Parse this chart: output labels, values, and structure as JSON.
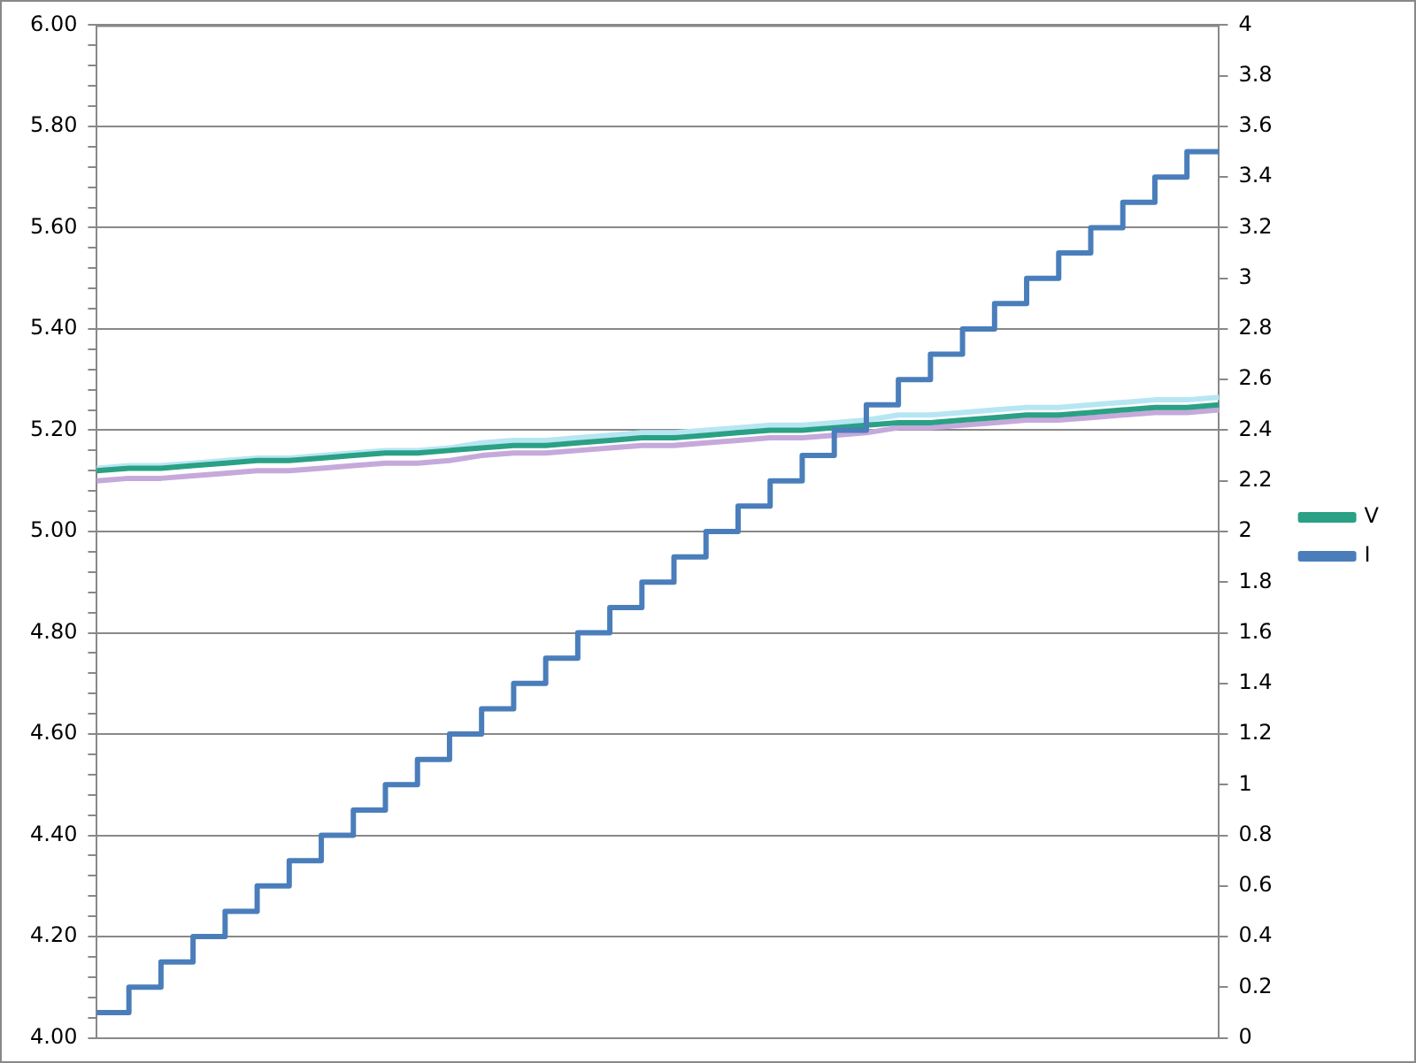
{
  "chart_data": {
    "type": "line",
    "categories": [
      null,
      null,
      null,
      null,
      null,
      null,
      null,
      null,
      null,
      null,
      null,
      null,
      null,
      null,
      null,
      null,
      null,
      null,
      null,
      null,
      null,
      null,
      null,
      null,
      null,
      null,
      null,
      null,
      null,
      null,
      null,
      null,
      null,
      null,
      null,
      null
    ],
    "series": [
      {
        "color": "#b7e6f3",
        "values": [
          5.125,
          5.13,
          5.13,
          5.135,
          5.14,
          5.145,
          5.145,
          5.15,
          5.155,
          5.16,
          5.16,
          5.165,
          5.175,
          5.18,
          5.18,
          5.185,
          5.19,
          5.195,
          5.195,
          5.2,
          5.205,
          5.21,
          5.21,
          5.215,
          5.22,
          5.23,
          5.23,
          5.235,
          5.24,
          5.245,
          5.245,
          5.25,
          5.255,
          5.26,
          5.26,
          5.265
        ]
      },
      {
        "color": "#c6a9db",
        "values": [
          5.1,
          5.105,
          5.105,
          5.11,
          5.115,
          5.12,
          5.12,
          5.125,
          5.13,
          5.135,
          5.135,
          5.14,
          5.15,
          5.155,
          5.155,
          5.16,
          5.165,
          5.17,
          5.17,
          5.175,
          5.18,
          5.185,
          5.185,
          5.19,
          5.195,
          5.205,
          5.205,
          5.21,
          5.215,
          5.22,
          5.22,
          5.225,
          5.23,
          5.235,
          5.235,
          5.24
        ]
      },
      {
        "name": "V",
        "color": "#2aa084",
        "values": [
          5.12,
          5.125,
          5.125,
          5.13,
          5.135,
          5.14,
          5.14,
          5.145,
          5.15,
          5.155,
          5.155,
          5.16,
          5.165,
          5.17,
          5.17,
          5.175,
          5.18,
          5.185,
          5.185,
          5.19,
          5.195,
          5.2,
          5.2,
          5.205,
          5.21,
          5.215,
          5.215,
          5.22,
          5.225,
          5.23,
          5.23,
          5.235,
          5.24,
          5.245,
          5.245,
          5.25
        ]
      },
      {
        "name": "I",
        "type": "step",
        "axis": "y2",
        "color": "#4a7ebb",
        "values": [
          0.1,
          0.2,
          0.3,
          0.4,
          0.5,
          0.6,
          0.7,
          0.8,
          0.9,
          1.0,
          1.1,
          1.2,
          1.3,
          1.4,
          1.5,
          1.6,
          1.7,
          1.8,
          1.9,
          2.0,
          2.1,
          2.2,
          2.3,
          2.4,
          2.5,
          2.6,
          2.7,
          2.8,
          2.9,
          3.0,
          3.1,
          3.2,
          3.3,
          3.4,
          3.5,
          3.5
        ]
      }
    ],
    "ylim": [
      4,
      6
    ],
    "yticks": [
      {
        "value": 4,
        "label": "4.00"
      },
      {
        "value": 4.04,
        "label": null
      },
      {
        "value": 4.08,
        "label": null
      },
      {
        "value": 4.12,
        "label": null
      },
      {
        "value": 4.16,
        "label": null
      },
      {
        "value": 4.2,
        "label": "4.20"
      },
      {
        "value": 4.24,
        "label": null
      },
      {
        "value": 4.28,
        "label": null
      },
      {
        "value": 4.32,
        "label": null
      },
      {
        "value": 4.36,
        "label": null
      },
      {
        "value": 4.4,
        "label": "4.40"
      },
      {
        "value": 4.44,
        "label": null
      },
      {
        "value": 4.48,
        "label": null
      },
      {
        "value": 4.52,
        "label": null
      },
      {
        "value": 4.56,
        "label": null
      },
      {
        "value": 4.6,
        "label": "4.60"
      },
      {
        "value": 4.64,
        "label": null
      },
      {
        "value": 4.68,
        "label": null
      },
      {
        "value": 4.72,
        "label": null
      },
      {
        "value": 4.76,
        "label": null
      },
      {
        "value": 4.8,
        "label": "4.80"
      },
      {
        "value": 4.84,
        "label": null
      },
      {
        "value": 4.88,
        "label": null
      },
      {
        "value": 4.92,
        "label": null
      },
      {
        "value": 4.96,
        "label": null
      },
      {
        "value": 5,
        "label": "5.00"
      },
      {
        "value": 5.04,
        "label": null
      },
      {
        "value": 5.08,
        "label": null
      },
      {
        "value": 5.12,
        "label": null
      },
      {
        "value": 5.16,
        "label": null
      },
      {
        "value": 5.2,
        "label": "5.20"
      },
      {
        "value": 5.24,
        "label": null
      },
      {
        "value": 5.28,
        "label": null
      },
      {
        "value": 5.32,
        "label": null
      },
      {
        "value": 5.36,
        "label": null
      },
      {
        "value": 5.4,
        "label": "5.40"
      },
      {
        "value": 5.44,
        "label": null
      },
      {
        "value": 5.48,
        "label": null
      },
      {
        "value": 5.52,
        "label": null
      },
      {
        "value": 5.56,
        "label": null
      },
      {
        "value": 5.6,
        "label": "5.60"
      },
      {
        "value": 5.64,
        "label": null
      },
      {
        "value": 5.68,
        "label": null
      },
      {
        "value": 5.72,
        "label": null
      },
      {
        "value": 5.76,
        "label": null
      },
      {
        "value": 5.8,
        "label": "5.80"
      },
      {
        "value": 5.84,
        "label": null
      },
      {
        "value": 5.88,
        "label": null
      },
      {
        "value": 5.92,
        "label": null
      },
      {
        "value": 5.96,
        "label": null
      },
      {
        "value": 6,
        "label": "6.00"
      }
    ],
    "y2lim": [
      0,
      4
    ],
    "y2ticks": [
      0,
      0.2,
      0.4,
      0.6,
      0.8,
      1,
      1.2,
      1.4,
      1.6,
      1.8,
      2,
      2.2,
      2.4,
      2.6,
      2.8,
      3,
      3.2,
      3.4,
      3.6,
      3.8,
      4
    ],
    "grid": "y",
    "legend": "right",
    "marker": "none"
  }
}
